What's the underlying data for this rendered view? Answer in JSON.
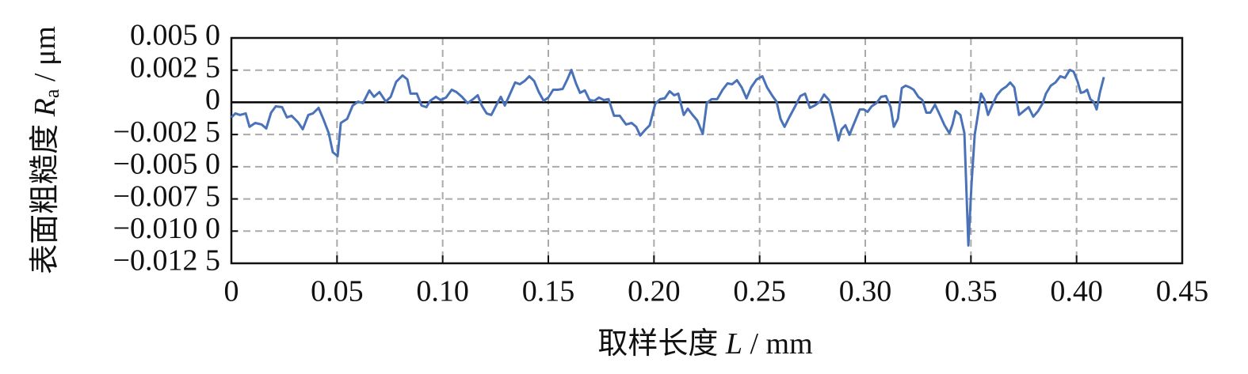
{
  "chart_data": {
    "type": "line",
    "xlabel": {
      "text": "取样长度",
      "var": "L",
      "unit": "/ mm"
    },
    "ylabel": {
      "text": "表面粗糙度",
      "var": "R",
      "sub": "a",
      "unit": "/ μm"
    },
    "xlim": [
      0,
      0.45
    ],
    "xticks": [
      0,
      0.05,
      {
        "value": 0.1,
        "label": "0.10"
      },
      0.15,
      {
        "value": 0.2,
        "label": "0.20"
      },
      0.25,
      {
        "value": 0.3,
        "label": "0.30"
      },
      0.35,
      {
        "value": 0.4,
        "label": "0.40"
      },
      0.45
    ],
    "ylim": [
      -0.0125,
      0.005
    ],
    "yticks": [
      {
        "value": 0.005,
        "label": "0.005 0"
      },
      {
        "value": 0.0025,
        "label": "0.002 5"
      },
      0,
      {
        "value": -0.0025,
        "label": "−0.002 5"
      },
      {
        "value": -0.005,
        "label": "−0.005 0"
      },
      {
        "value": -0.0075,
        "label": "−0.007 5"
      },
      {
        "value": -0.01,
        "label": "−0.010 0"
      },
      {
        "value": -0.0125,
        "label": "−0.012 5"
      }
    ],
    "grid": true,
    "series": [
      {
        "color": "#4a72b8",
        "x": [
          0,
          0.0019,
          0.0041,
          0.0068,
          0.0086,
          0.0113,
          0.0143,
          0.0165,
          0.0188,
          0.021,
          0.024,
          0.0263,
          0.0285,
          0.0315,
          0.0338,
          0.0364,
          0.0386,
          0.0413,
          0.0435,
          0.0461,
          0.048,
          0.0503,
          0.0518,
          0.0548,
          0.0574,
          0.06,
          0.0623,
          0.0653,
          0.0675,
          0.0701,
          0.0731,
          0.0754,
          0.078,
          0.081,
          0.0833,
          0.0848,
          0.0878,
          0.09,
          0.0923,
          0.0941,
          0.0968,
          0.099,
          0.1016,
          0.1043,
          0.1065,
          0.1091,
          0.1118,
          0.1144,
          0.1166,
          0.1185,
          0.1208,
          0.123,
          0.1253,
          0.1275,
          0.1294,
          0.1316,
          0.1343,
          0.1365,
          0.1388,
          0.141,
          0.1433,
          0.1455,
          0.1478,
          0.15,
          0.1523,
          0.1545,
          0.1568,
          0.159,
          0.1609,
          0.1631,
          0.165,
          0.1673,
          0.1695,
          0.1718,
          0.174,
          0.1763,
          0.1785,
          0.1811,
          0.1838,
          0.1868,
          0.1894,
          0.1916,
          0.1935,
          0.1961,
          0.198,
          0.2006,
          0.2029,
          0.2051,
          0.2074,
          0.2096,
          0.2115,
          0.2141,
          0.216,
          0.2183,
          0.2205,
          0.2231,
          0.225,
          0.2273,
          0.2299,
          0.2325,
          0.2348,
          0.237,
          0.2393,
          0.2415,
          0.2438,
          0.246,
          0.2486,
          0.2513,
          0.2535,
          0.2561,
          0.258,
          0.2599,
          0.2618,
          0.264,
          0.267,
          0.2693,
          0.2715,
          0.2738,
          0.276,
          0.2786,
          0.2805,
          0.2828,
          0.285,
          0.2873,
          0.2888,
          0.2906,
          0.2925,
          0.2948,
          0.2974,
          0.2993,
          0.3011,
          0.303,
          0.3053,
          0.3075,
          0.3098,
          0.312,
          0.3135,
          0.3154,
          0.3173,
          0.3191,
          0.321,
          0.3229,
          0.3251,
          0.327,
          0.3289,
          0.3308,
          0.333,
          0.3353,
          0.3375,
          0.3398,
          0.3413,
          0.3428,
          0.345,
          0.3469,
          0.3488,
          0.3503,
          0.3518,
          0.3533,
          0.3548,
          0.3563,
          0.3581,
          0.36,
          0.3623,
          0.3645,
          0.3668,
          0.3686,
          0.3705,
          0.3728,
          0.375,
          0.3773,
          0.3795,
          0.3818,
          0.384,
          0.3855,
          0.3878,
          0.39,
          0.3923,
          0.3945,
          0.3968,
          0.3986,
          0.4005,
          0.402,
          0.4035,
          0.405,
          0.4065,
          0.408,
          0.4095,
          0.411,
          0.4129
        ],
        "values": [
          -0.00117,
          -0.00086,
          -0.00098,
          -0.00086,
          -0.0019,
          -0.0016,
          -0.00172,
          -0.00203,
          -0.0008,
          -0.00031,
          -0.00037,
          -0.00117,
          -0.00104,
          -0.00154,
          -0.00209,
          -0.00098,
          -0.00086,
          -0.00043,
          -0.00129,
          -0.0024,
          -0.00387,
          -0.00418,
          -0.0016,
          -0.00129,
          -0.00025,
          6e-05,
          -6e-05,
          0.00092,
          0.00043,
          0.0008,
          6e-05,
          0.00043,
          0.0016,
          0.00209,
          0.00178,
          0.00068,
          0.00068,
          -0.00025,
          -0.00037,
          0.00012,
          0.00043,
          0.00018,
          0.00037,
          0.00098,
          0.0008,
          0.00043,
          -6e-05,
          0.00025,
          0.00055,
          -0.00025,
          -0.00086,
          -0.00098,
          -0.00025,
          0.00043,
          -0.00025,
          0.00055,
          0.00154,
          0.00141,
          0.00166,
          0.00203,
          0.00166,
          0.0008,
          0.00012,
          0.00037,
          0.00098,
          0.00098,
          0.00104,
          0.00178,
          0.00252,
          0.00147,
          0.00074,
          0.00092,
          0.00018,
          0.00012,
          0.00037,
          0.00018,
          0.00025,
          -0.00104,
          -0.00104,
          -0.00172,
          -0.0016,
          -0.0019,
          -0.00258,
          -0.00209,
          -0.00178,
          -0.00012,
          0.00025,
          0.00031,
          0.00086,
          0.00055,
          0.00068,
          -0.00098,
          -0.00049,
          -0.00098,
          -0.00141,
          -0.00246,
          -6e-05,
          0.00025,
          0.00025,
          0.00098,
          0.00147,
          0.00141,
          0.00172,
          0.00117,
          0.00031,
          0.00117,
          0.00178,
          0.00203,
          0.00117,
          0.00049,
          6e-05,
          -0.00129,
          -0.0019,
          -0.00117,
          -0.00025,
          0.00049,
          0.00068,
          -0.00043,
          -0.00025,
          6e-05,
          0.00061,
          0.00018,
          -0.00129,
          -0.00295,
          -0.00209,
          -0.00178,
          -0.00252,
          -0.0016,
          -0.00055,
          -0.00055,
          -0.00074,
          -0.00031,
          -6e-05,
          0.00043,
          0.00049,
          -0.00037,
          -0.0019,
          -0.00129,
          0.00111,
          0.00129,
          0.00117,
          0.00098,
          0.00043,
          0.00018,
          -0.0008,
          -0.0008,
          -0.00018,
          -0.00098,
          -0.00178,
          -0.0024,
          -0.00172,
          -0.00068,
          -0.00098,
          -0.0024,
          -0.01111,
          -0.00632,
          -0.00252,
          -0.00098,
          0.00068,
          0.00025,
          -0.00098,
          -0.00025,
          0.00055,
          0.00098,
          0.00123,
          0.00154,
          0.00117,
          -0.00098,
          -0.00068,
          -0.00037,
          -0.00111,
          -0.00068,
          -6e-05,
          0.00068,
          0.00129,
          0.00154,
          0.00203,
          0.0019,
          0.00252,
          0.00239,
          0.0016,
          0.00074,
          0.0008,
          0.00098,
          0.00025,
          6e-05,
          -0.00055,
          0.00074,
          0.00196
        ]
      }
    ]
  }
}
